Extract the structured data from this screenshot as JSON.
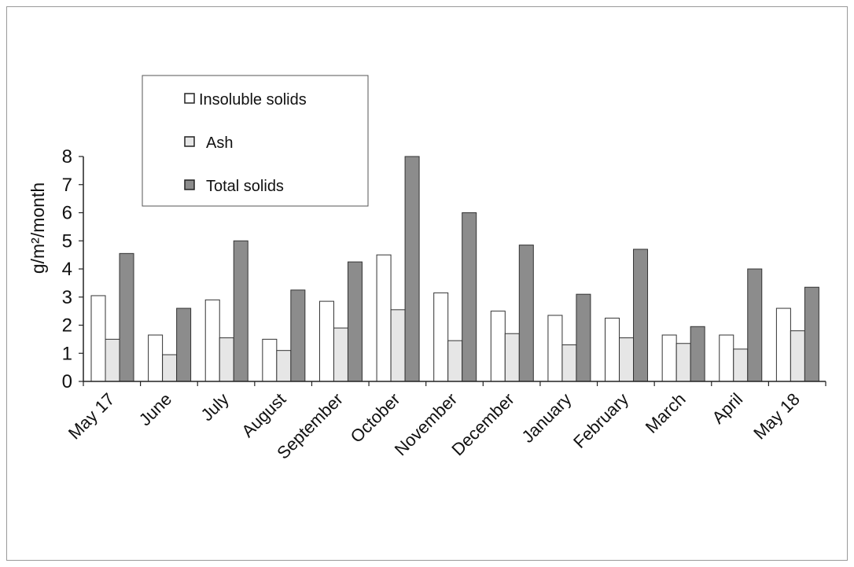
{
  "chart_data": {
    "type": "bar",
    "title": "",
    "xlabel": "",
    "ylabel": "g/m²/month",
    "ylim": [
      0,
      8
    ],
    "yticks": [
      0,
      1,
      2,
      3,
      4,
      5,
      6,
      7,
      8
    ],
    "grid": false,
    "legend_position": "top-left",
    "categories": [
      "May 17",
      "June",
      "July",
      "August",
      "September",
      "October",
      "November",
      "December",
      "January",
      "February",
      "March",
      "April",
      "May 18"
    ],
    "series": [
      {
        "name": "Insoluble solids",
        "color": "#ffffff",
        "values": [
          3.05,
          1.65,
          2.9,
          1.5,
          2.85,
          4.5,
          3.15,
          2.5,
          2.35,
          2.25,
          1.65,
          1.65,
          2.6
        ]
      },
      {
        "name": "Ash",
        "color": "#e6e6e6",
        "values": [
          1.5,
          0.95,
          1.55,
          1.1,
          1.9,
          2.55,
          1.45,
          1.7,
          1.3,
          1.55,
          1.35,
          1.15,
          1.8
        ]
      },
      {
        "name": "Total solids",
        "color": "#8c8c8c",
        "values": [
          4.55,
          2.6,
          5.0,
          3.25,
          4.25,
          8.0,
          6.0,
          4.85,
          3.1,
          4.7,
          1.95,
          4.0,
          3.35
        ]
      }
    ]
  }
}
